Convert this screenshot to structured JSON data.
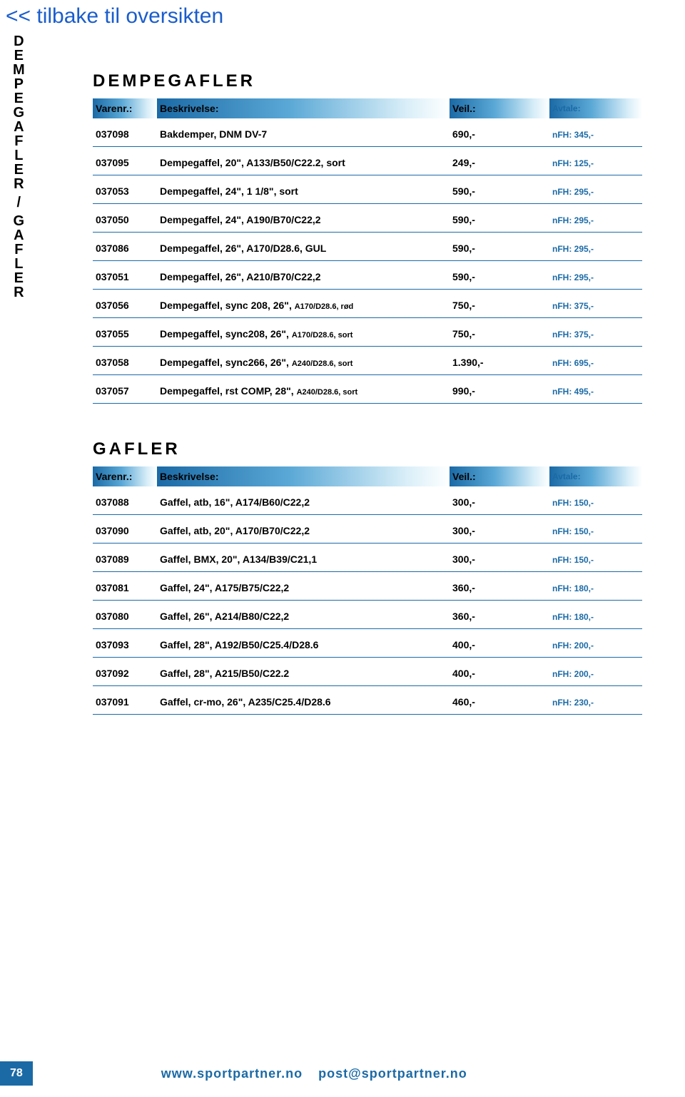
{
  "back_link": "<< tilbake til oversikten",
  "vertical_label": [
    "D",
    "E",
    "M",
    "P",
    "E",
    "G",
    "A",
    "F",
    "L",
    "E",
    "R",
    "/",
    "G",
    "A",
    "F",
    "L",
    "E",
    "R"
  ],
  "columns": {
    "varenr": "Varenr.:",
    "besk": "Beskrivelse:",
    "veil": "Veil.:",
    "avtale": "Avtale:"
  },
  "sections": [
    {
      "title": "DEMPEGAFLER",
      "rows": [
        {
          "varenr": "037098",
          "besk": "Bakdemper, DNM DV-7",
          "sub": "",
          "veil": "690,-",
          "avtale": "nFH: 345,-"
        },
        {
          "varenr": "037095",
          "besk": "Dempegaffel, 20\", A133/B50/C22.2, sort",
          "sub": "",
          "veil": "249,-",
          "avtale": "nFH: 125,-"
        },
        {
          "varenr": "037053",
          "besk": "Dempegaffel, 24\", 1 1/8\", sort",
          "sub": "",
          "veil": "590,-",
          "avtale": "nFH: 295,-"
        },
        {
          "varenr": "037050",
          "besk": "Dempegaffel, 24\", A190/B70/C22,2",
          "sub": "",
          "veil": "590,-",
          "avtale": "nFH: 295,-"
        },
        {
          "varenr": "037086",
          "besk": "Dempegaffel, 26\", A170/D28.6, GUL",
          "sub": "",
          "veil": "590,-",
          "avtale": "nFH: 295,-"
        },
        {
          "varenr": "037051",
          "besk": "Dempegaffel, 26\", A210/B70/C22,2",
          "sub": "",
          "veil": "590,-",
          "avtale": "nFH: 295,-"
        },
        {
          "varenr": "037056",
          "besk": "Dempegaffel, sync 208, 26\", ",
          "sub": "A170/D28.6, rød",
          "veil": "750,-",
          "avtale": "nFH: 375,-"
        },
        {
          "varenr": "037055",
          "besk": "Dempegaffel, sync208, 26\", ",
          "sub": "A170/D28.6, sort",
          "veil": "750,-",
          "avtale": "nFH: 375,-"
        },
        {
          "varenr": "037058",
          "besk": "Dempegaffel, sync266, 26\", ",
          "sub": "A240/D28.6, sort",
          "veil": "1.390,-",
          "avtale": "nFH: 695,-"
        },
        {
          "varenr": "037057",
          "besk": "Dempegaffel, rst COMP, 28\", ",
          "sub": "A240/D28.6, sort",
          "veil": "990,-",
          "avtale": "nFH: 495,-"
        }
      ]
    },
    {
      "title": "GAFLER",
      "rows": [
        {
          "varenr": "037088",
          "besk": "Gaffel, atb, 16\", A174/B60/C22,2",
          "sub": "",
          "veil": "300,-",
          "avtale": "nFH: 150,-"
        },
        {
          "varenr": "037090",
          "besk": "Gaffel, atb, 20\", A170/B70/C22,2",
          "sub": "",
          "veil": "300,-",
          "avtale": "nFH: 150,-"
        },
        {
          "varenr": "037089",
          "besk": "Gaffel, BMX, 20\", A134/B39/C21,1",
          "sub": "",
          "veil": "300,-",
          "avtale": "nFH: 150,-"
        },
        {
          "varenr": "037081",
          "besk": "Gaffel, 24\", A175/B75/C22,2",
          "sub": "",
          "veil": "360,-",
          "avtale": "nFH: 180,-"
        },
        {
          "varenr": "037080",
          "besk": "Gaffel, 26\", A214/B80/C22,2",
          "sub": "",
          "veil": "360,-",
          "avtale": "nFH: 180,-"
        },
        {
          "varenr": "037093",
          "besk": "Gaffel, 28\", A192/B50/C25.4/D28.6",
          "sub": "",
          "veil": "400,-",
          "avtale": "nFH: 200,-"
        },
        {
          "varenr": "037092",
          "besk": "Gaffel, 28\", A215/B50/C22.2",
          "sub": "",
          "veil": "400,-",
          "avtale": "nFH: 200,-"
        },
        {
          "varenr": "037091",
          "besk": "Gaffel, cr-mo, 26\", A235/C25.4/D28.6",
          "sub": "",
          "veil": "460,-",
          "avtale": "nFH: 230,-"
        }
      ]
    }
  ],
  "footer": {
    "page": "78",
    "url": "www.sportpartner.no",
    "email": "post@sportpartner.no"
  }
}
